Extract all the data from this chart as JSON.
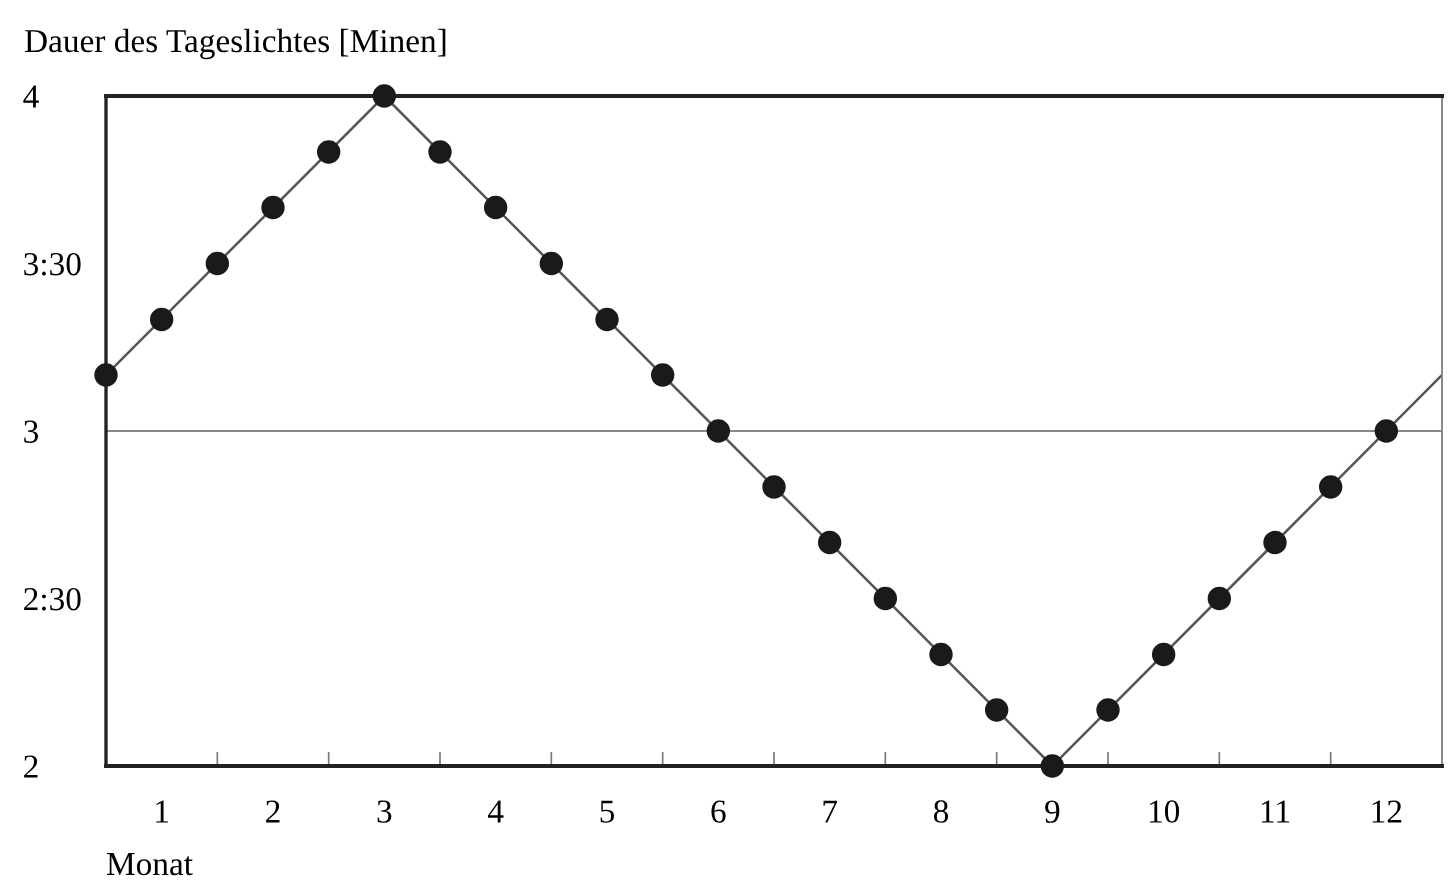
{
  "chart_data": {
    "type": "line",
    "ylabel": "Dauer des Tageslichtes [Minen]",
    "xlabel": "Monat",
    "series": [
      {
        "color": "#555555",
        "marker": "none",
        "x": [
          0.5,
          3,
          9,
          12.5
        ],
        "values": [
          3.167,
          4,
          2,
          3.167
        ]
      },
      {
        "type": "scatter",
        "color": "#1a1a1a",
        "marker": "circle",
        "x": [
          0.5,
          1,
          1.5,
          2,
          2.5,
          3,
          3.5,
          4,
          4.5,
          5,
          5.5,
          6,
          6.5,
          7,
          7.5,
          8,
          8.5,
          9,
          9.5,
          10,
          10.5,
          11,
          11.5,
          12
        ],
        "values": [
          3.167,
          3.333,
          3.5,
          3.667,
          3.833,
          4,
          3.833,
          3.667,
          3.5,
          3.333,
          3.167,
          3,
          2.833,
          2.667,
          2.5,
          2.333,
          2.167,
          2,
          2.167,
          2.333,
          2.5,
          2.667,
          2.833,
          3
        ]
      }
    ],
    "xlim": [
      0.5,
      12.5
    ],
    "xticks": [
      1,
      {
        "value": 1.5,
        "label": null
      },
      2,
      {
        "value": 2.5,
        "label": null
      },
      3,
      {
        "value": 3.5,
        "label": null
      },
      4,
      {
        "value": 4.5,
        "label": null
      },
      5,
      {
        "value": 5.5,
        "label": null
      },
      6,
      {
        "value": 6.5,
        "label": null
      },
      7,
      {
        "value": 7.5,
        "label": null
      },
      8,
      {
        "value": 8.5,
        "label": null
      },
      9,
      {
        "value": 9.5,
        "label": null
      },
      10,
      {
        "value": 10.5,
        "label": null
      },
      11,
      {
        "value": 11.5,
        "label": null
      },
      12
    ],
    "ylim": [
      2,
      4
    ],
    "yticks": [
      2,
      {
        "value": 2.5,
        "label": "2:30"
      },
      3,
      {
        "value": 3.5,
        "label": "3:30"
      },
      4
    ],
    "ref_lines": [
      {
        "axis": "y",
        "value": 3,
        "color": "#888888"
      }
    ],
    "grid": false
  }
}
